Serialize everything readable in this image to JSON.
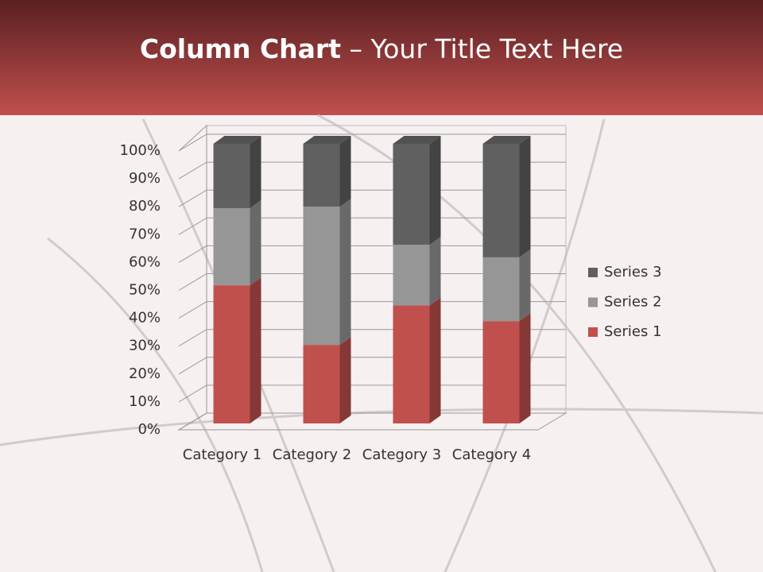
{
  "chart_data": {
    "type": "bar",
    "stacked": true,
    "title": {
      "bold": "Column Chart",
      "rest": " – Your Title Text Here"
    },
    "categories": [
      "Category 1",
      "Category 2",
      "Category 3",
      "Category 4"
    ],
    "series": [
      {
        "name": "Series 1",
        "color": "#c0504d",
        "values": [
          49.4,
          28.1,
          42.2,
          36.6
        ]
      },
      {
        "name": "Series 2",
        "color": "#969696",
        "values": [
          27.6,
          49.4,
          21.7,
          22.8
        ]
      },
      {
        "name": "Series 3",
        "color": "#606060",
        "values": [
          23.0,
          22.5,
          36.1,
          40.6
        ]
      }
    ],
    "ylim": [
      0,
      100
    ],
    "yticks": [
      {
        "value": 0,
        "label": "0%"
      },
      {
        "value": 10,
        "label": "10%"
      },
      {
        "value": 20,
        "label": "20%"
      },
      {
        "value": 30,
        "label": "30%"
      },
      {
        "value": 40,
        "label": "40%"
      },
      {
        "value": 50,
        "label": "50%"
      },
      {
        "value": 60,
        "label": "60%"
      },
      {
        "value": 70,
        "label": "70%"
      },
      {
        "value": 80,
        "label": "80%"
      },
      {
        "value": 90,
        "label": "90%"
      },
      {
        "value": 100,
        "label": "100%"
      }
    ],
    "grid": true,
    "legend": "right"
  }
}
